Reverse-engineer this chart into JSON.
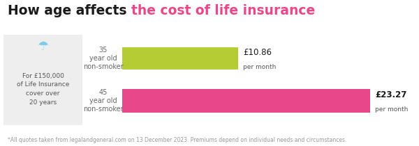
{
  "title_black": "How age affects ",
  "title_pink": "the cost of life insurance",
  "title_fontsize": 13.5,
  "bg_color": "#ffffff",
  "bar_values": [
    10.86,
    23.27
  ],
  "bar_max": 23.27,
  "bar_colors": [
    "#b5cc34",
    "#e8488a"
  ],
  "price_labels": [
    "£10.86",
    "£23.27"
  ],
  "per_month": "per month",
  "bar_label_bold": [
    false,
    true
  ],
  "age_labels": [
    "35\nyear old\nnon-smoker",
    "45\nyear old\nnon-smoker"
  ],
  "info_text": "For £150,000\nof Life Insurance\ncover over\n20 years",
  "info_bg": "#eeeeee",
  "footnote": "*All quotes taken from legalandgeneral.com on 13 December 2023. Premiums depend on individual needs and circumstances.",
  "footnote_fontsize": 5.5
}
